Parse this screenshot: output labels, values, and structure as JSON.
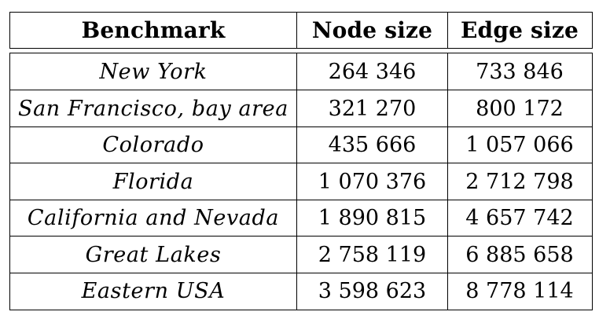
{
  "table": {
    "headers": [
      "Benchmark",
      "Node size",
      "Edge size"
    ],
    "rows": [
      {
        "benchmark": "New York",
        "node_size": "264 346",
        "edge_size": "733 846"
      },
      {
        "benchmark": "San Francisco, bay area",
        "node_size": "321 270",
        "edge_size": "800 172"
      },
      {
        "benchmark": "Colorado",
        "node_size": "435 666",
        "edge_size": "1 057 066"
      },
      {
        "benchmark": "Florida",
        "node_size": "1 070 376",
        "edge_size": "2 712 798"
      },
      {
        "benchmark": "California and Nevada",
        "node_size": "1 890 815",
        "edge_size": "4 657 742"
      },
      {
        "benchmark": "Great Lakes",
        "node_size": "2 758 119",
        "edge_size": "6 885 658"
      },
      {
        "benchmark": "Eastern USA",
        "node_size": "3 598 623",
        "edge_size": "8 778 114"
      }
    ]
  }
}
